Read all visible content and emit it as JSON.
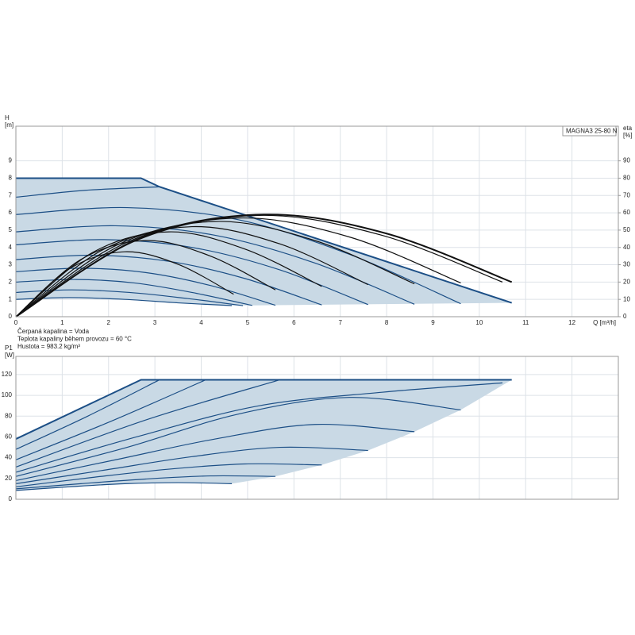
{
  "chart_data": [
    {
      "type": "line",
      "model": "MAGNA3 25-80 N",
      "ylabel": "H",
      "yunit": "[m]",
      "y2label": "eta",
      "y2unit": "[%]",
      "xlabel": "Q [m³/h]",
      "annotations": [
        "Čerpaná kapalina = Voda",
        "Teplota kapaliny během provozu = 60 °C",
        "Hustota = 983.2 kg/m³"
      ],
      "xlim": [
        0,
        13
      ],
      "ylim": [
        0,
        11
      ],
      "y2lim": [
        0,
        110
      ],
      "xticks": [
        0,
        1,
        2,
        3,
        4,
        5,
        6,
        7,
        8,
        9,
        10,
        11,
        12
      ],
      "yticks": [
        0,
        1,
        2,
        3,
        4,
        5,
        6,
        7,
        8,
        9
      ],
      "y2ticks": [
        0,
        10,
        20,
        30,
        40,
        50,
        60,
        70,
        80,
        90
      ],
      "grid": true,
      "region": {
        "color": "#c9d9e5",
        "x": [
          0,
          2.7,
          3.1,
          10.7,
          4.66,
          3.5,
          2.35,
          1.15,
          0
        ],
        "values": [
          8,
          8,
          7.5,
          0.8,
          0.64,
          0.8,
          1.0,
          1.1,
          1.0
        ]
      },
      "series": [
        {
          "color": "#1c4f86",
          "line_width": 2,
          "smooth": false,
          "x": [
            0,
            2.7,
            3.1,
            10.7
          ],
          "values": [
            8,
            8,
            7.5,
            0.8
          ]
        },
        {
          "color": "#1c4f86",
          "line_width": 1.2,
          "x": [
            0,
            1.5,
            3.1
          ],
          "values": [
            6.9,
            7.3,
            7.5
          ]
        },
        {
          "color": "#1c4f86",
          "line_width": 1.2,
          "x": [
            0,
            2.4,
            4.8,
            7.2,
            9.6
          ],
          "values": [
            5.9,
            6.3,
            5.6,
            3.6,
            0.75
          ]
        },
        {
          "color": "#1c4f86",
          "line_width": 1.2,
          "x": [
            0,
            2.15,
            4.3,
            6.45,
            8.6
          ],
          "values": [
            4.9,
            5.25,
            4.7,
            3.1,
            0.72
          ]
        },
        {
          "color": "#1c4f86",
          "line_width": 1.2,
          "x": [
            0,
            1.9,
            3.8,
            5.7,
            7.6
          ],
          "values": [
            4.15,
            4.45,
            4.0,
            2.7,
            0.7
          ]
        },
        {
          "color": "#1c4f86",
          "line_width": 1.2,
          "x": [
            0,
            1.65,
            3.3,
            4.95,
            6.6
          ],
          "values": [
            3.3,
            3.55,
            3.2,
            2.2,
            0.68
          ]
        },
        {
          "color": "#1c4f86",
          "line_width": 1.2,
          "x": [
            0,
            1.4,
            2.8,
            4.2,
            5.6
          ],
          "values": [
            2.6,
            2.8,
            2.55,
            1.8,
            0.66
          ]
        },
        {
          "color": "#1c4f86",
          "line_width": 1.2,
          "x": [
            0,
            1.3,
            2.55,
            3.8,
            5.1
          ],
          "values": [
            2.0,
            2.15,
            1.95,
            1.4,
            0.65
          ]
        },
        {
          "color": "#1c4f86",
          "line_width": 1.2,
          "x": [
            0,
            1.2,
            2.45,
            3.7,
            4.9
          ],
          "values": [
            1.4,
            1.55,
            1.4,
            1.05,
            0.64
          ]
        },
        {
          "color": "#1c4f86",
          "line_width": 1.2,
          "x": [
            0,
            1.15,
            2.35,
            3.5,
            4.66
          ],
          "values": [
            1.0,
            1.1,
            1.0,
            0.8,
            0.64
          ]
        },
        {
          "color": "#111111",
          "line_width": 1.2,
          "axis": "y2",
          "x": [
            0,
            1.175,
            2.35,
            3.525,
            4.7
          ],
          "values": [
            0,
            28,
            37.5,
            30,
            13
          ]
        },
        {
          "color": "#111111",
          "line_width": 1.2,
          "axis": "y2",
          "x": [
            0,
            1.4,
            2.8,
            4.2,
            5.6
          ],
          "values": [
            0,
            33,
            44,
            35,
            15.5
          ]
        },
        {
          "color": "#111111",
          "line_width": 1.2,
          "axis": "y2",
          "x": [
            0,
            1.65,
            3.3,
            4.95,
            6.6
          ],
          "values": [
            0,
            37,
            49,
            39,
            17.5
          ]
        },
        {
          "color": "#111111",
          "line_width": 1.2,
          "axis": "y2",
          "x": [
            0,
            1.9,
            3.8,
            5.7,
            7.6
          ],
          "values": [
            0,
            39,
            52,
            42,
            18.5
          ]
        },
        {
          "color": "#111111",
          "line_width": 1.2,
          "axis": "y2",
          "x": [
            0,
            2.15,
            4.3,
            6.45,
            8.6
          ],
          "values": [
            0,
            41,
            55,
            44,
            19
          ]
        },
        {
          "color": "#111111",
          "line_width": 1.2,
          "axis": "y2",
          "x": [
            0,
            2.4,
            4.8,
            7.2,
            9.6
          ],
          "values": [
            0,
            43,
            57,
            46,
            19.5
          ]
        },
        {
          "color": "#111111",
          "line_width": 1.2,
          "axis": "y2",
          "x": [
            0,
            2.6,
            5.25,
            7.9,
            10.5
          ],
          "values": [
            0,
            44,
            58.5,
            47,
            20
          ]
        },
        {
          "color": "#111111",
          "line_width": 2,
          "axis": "y2",
          "x": [
            0,
            2.65,
            5.35,
            8.0,
            10.7
          ],
          "values": [
            0,
            45,
            59,
            48,
            20
          ]
        }
      ]
    },
    {
      "type": "line",
      "ylabel": "P1",
      "yunit": "[W]",
      "xlim": [
        0,
        13
      ],
      "ylim": [
        0,
        137.5
      ],
      "xticks": [
        0,
        1,
        2,
        3,
        4,
        5,
        6,
        7,
        8,
        9,
        10,
        11,
        12
      ],
      "xtick_labels": false,
      "yticks": [
        0,
        20,
        40,
        60,
        80,
        100,
        120
      ],
      "grid": true,
      "region": {
        "color": "#c9d9e5",
        "x": [
          0,
          2.7,
          10.7,
          9.6,
          8.6,
          7.6,
          6.6,
          5.6,
          4.66,
          3.5,
          2.35,
          1.15,
          0
        ],
        "values": [
          58,
          115,
          115,
          86,
          65,
          47,
          33,
          22,
          15,
          16,
          15,
          12,
          8.5
        ]
      },
      "series": [
        {
          "color": "#1c4f86",
          "line_width": 2,
          "smooth": false,
          "x": [
            0,
            2.7,
            10.7
          ],
          "values": [
            58,
            115,
            115
          ]
        },
        {
          "color": "#1c4f86",
          "line_width": 1.2,
          "x": [
            0,
            1.55,
            3.1
          ],
          "values": [
            48,
            80,
            115
          ]
        },
        {
          "color": "#1c4f86",
          "line_width": 1.2,
          "x": [
            0,
            2.05,
            4.1
          ],
          "values": [
            38,
            75,
            115
          ]
        },
        {
          "color": "#1c4f86",
          "line_width": 1.2,
          "x": [
            0,
            2.85,
            5.7
          ],
          "values": [
            31,
            77,
            115
          ]
        },
        {
          "color": "#1c4f86",
          "line_width": 1.2,
          "x": [
            0,
            2.6,
            5.25,
            7.9,
            10.5
          ],
          "values": [
            26,
            60,
            90,
            103,
            112
          ]
        },
        {
          "color": "#1c4f86",
          "line_width": 1.2,
          "x": [
            0,
            2.4,
            4.8,
            7.2,
            9.6
          ],
          "values": [
            22,
            50,
            82,
            98,
            86
          ]
        },
        {
          "color": "#1c4f86",
          "line_width": 1.2,
          "x": [
            0,
            2.15,
            4.3,
            6.45,
            8.6
          ],
          "values": [
            18,
            38,
            58,
            72,
            65
          ]
        },
        {
          "color": "#1c4f86",
          "line_width": 1.2,
          "x": [
            0,
            1.9,
            3.8,
            5.7,
            7.6
          ],
          "values": [
            15,
            28,
            41,
            50,
            47
          ]
        },
        {
          "color": "#1c4f86",
          "line_width": 1.2,
          "x": [
            0,
            1.65,
            3.3,
            4.95,
            6.6
          ],
          "values": [
            12,
            21,
            29,
            34,
            33
          ]
        },
        {
          "color": "#1c4f86",
          "line_width": 1.2,
          "x": [
            0,
            1.4,
            2.8,
            4.2,
            5.6
          ],
          "values": [
            10,
            15,
            19.5,
            22.5,
            22
          ]
        },
        {
          "color": "#1c4f86",
          "line_width": 1.2,
          "x": [
            0,
            1.15,
            2.35,
            3.5,
            4.66
          ],
          "values": [
            8.5,
            12,
            15,
            16,
            15
          ]
        }
      ]
    }
  ]
}
